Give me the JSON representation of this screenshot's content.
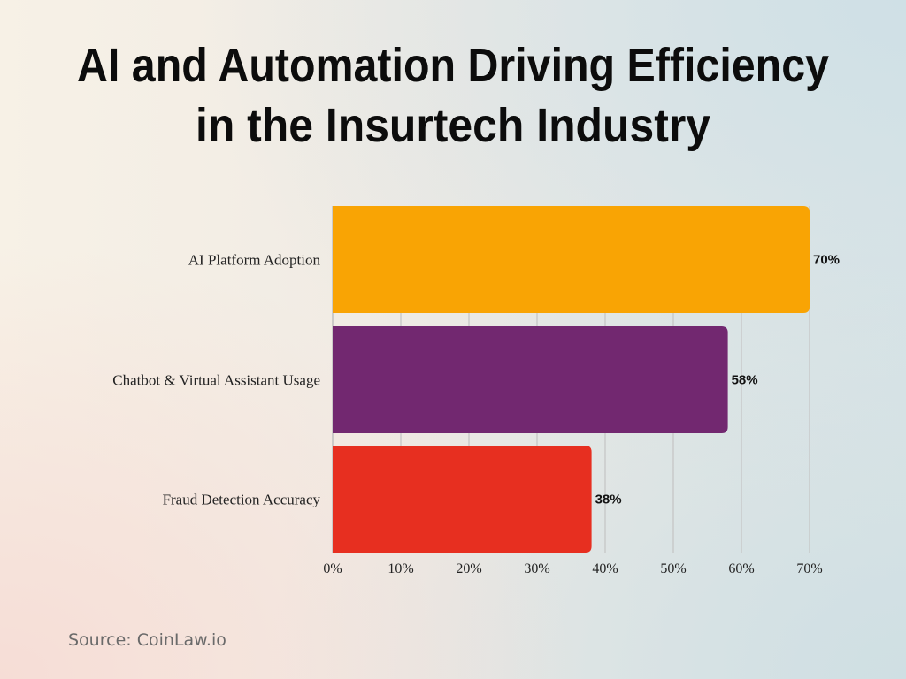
{
  "chart_data": {
    "type": "bar",
    "orientation": "horizontal",
    "title": "AI and Automation Driving Efficiency in the Insurtech Industry",
    "title_lines": [
      "AI and Automation Driving Efficiency",
      "in the Insurtech Industry"
    ],
    "categories": [
      "AI Platform Adoption",
      "Chatbot & Virtual Assistant Usage",
      "Fraud Detection Accuracy"
    ],
    "values": [
      70,
      58,
      38
    ],
    "data_labels": [
      "70%",
      "58%",
      "38%"
    ],
    "colors": [
      "#f9a404",
      "#722870",
      "#e72f20"
    ],
    "xlim": [
      0,
      70
    ],
    "x_ticks": [
      "0%",
      "10%",
      "20%",
      "30%",
      "40%",
      "50%",
      "60%",
      "70%"
    ],
    "grid": "vertical",
    "xlabel": "",
    "ylabel": ""
  },
  "source": "Source: CoinLaw.io"
}
